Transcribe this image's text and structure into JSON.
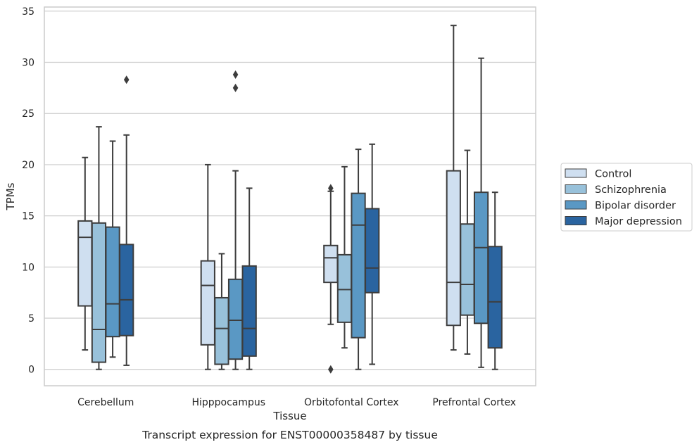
{
  "chart_data": {
    "type": "box",
    "caption": "Transcript expression for ENST00000358487 by tissue",
    "xlabel": "Tissue",
    "ylabel": "TPMs",
    "ylim": [
      -1.6,
      35.4
    ],
    "yticks": [
      0,
      5,
      10,
      15,
      20,
      25,
      30,
      35
    ],
    "grid": "horizontal",
    "legend_position": "right",
    "categories": [
      "Cerebellum",
      "Hipppocampus",
      "Orbitofontal Cortex",
      "Prefrontal Cortex"
    ],
    "series": [
      {
        "name": "Control",
        "color": "#cfdff0",
        "boxes": [
          {
            "whislo": 1.9,
            "q1": 6.2,
            "med": 12.9,
            "q3": 14.5,
            "whishi": 20.7,
            "fliers": []
          },
          {
            "whislo": 0.0,
            "q1": 2.4,
            "med": 8.2,
            "q3": 10.6,
            "whishi": 20.0,
            "fliers": []
          },
          {
            "whislo": 4.4,
            "q1": 8.5,
            "med": 10.9,
            "q3": 12.1,
            "whishi": 17.4,
            "fliers": [
              17.7,
              0.0
            ]
          },
          {
            "whislo": 1.9,
            "q1": 4.3,
            "med": 8.5,
            "q3": 19.4,
            "whishi": 33.6,
            "fliers": []
          }
        ]
      },
      {
        "name": "Schizophrenia",
        "color": "#98c1da",
        "boxes": [
          {
            "whislo": 0.0,
            "q1": 0.7,
            "med": 3.9,
            "q3": 14.3,
            "whishi": 23.7,
            "fliers": []
          },
          {
            "whislo": 0.0,
            "q1": 0.5,
            "med": 4.0,
            "q3": 7.0,
            "whishi": 11.3,
            "fliers": []
          },
          {
            "whislo": 2.1,
            "q1": 4.6,
            "med": 7.8,
            "q3": 11.2,
            "whishi": 19.8,
            "fliers": []
          },
          {
            "whislo": 1.5,
            "q1": 5.3,
            "med": 8.3,
            "q3": 14.2,
            "whishi": 21.4,
            "fliers": []
          }
        ]
      },
      {
        "name": "Bipolar disorder",
        "color": "#5a98c4",
        "boxes": [
          {
            "whislo": 1.2,
            "q1": 3.2,
            "med": 6.4,
            "q3": 13.9,
            "whishi": 22.3,
            "fliers": []
          },
          {
            "whislo": 0.0,
            "q1": 1.0,
            "med": 4.8,
            "q3": 8.8,
            "whishi": 19.4,
            "fliers": [
              27.5,
              28.8
            ]
          },
          {
            "whislo": 0.0,
            "q1": 3.1,
            "med": 14.1,
            "q3": 17.2,
            "whishi": 21.5,
            "fliers": []
          },
          {
            "whislo": 0.2,
            "q1": 4.5,
            "med": 11.9,
            "q3": 17.3,
            "whishi": 30.4,
            "fliers": []
          }
        ]
      },
      {
        "name": "Major depression",
        "color": "#2a64a0",
        "boxes": [
          {
            "whislo": 0.4,
            "q1": 3.3,
            "med": 6.8,
            "q3": 12.2,
            "whishi": 22.9,
            "fliers": [
              28.3
            ]
          },
          {
            "whislo": 0.0,
            "q1": 1.3,
            "med": 4.0,
            "q3": 10.1,
            "whishi": 17.7,
            "fliers": []
          },
          {
            "whislo": 0.5,
            "q1": 7.5,
            "med": 9.9,
            "q3": 15.7,
            "whishi": 22.0,
            "fliers": []
          },
          {
            "whislo": 0.0,
            "q1": 2.1,
            "med": 6.6,
            "q3": 12.0,
            "whishi": 17.3,
            "fliers": []
          }
        ]
      }
    ]
  }
}
